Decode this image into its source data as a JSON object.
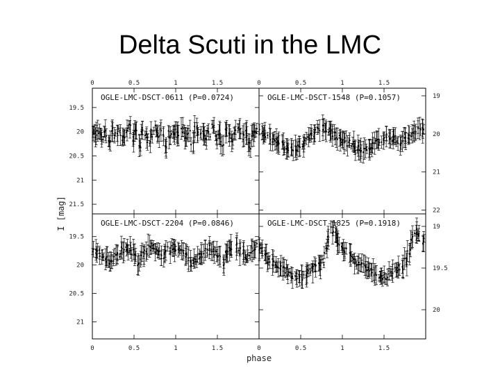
{
  "title": "Delta Scuti in the LMC",
  "chart_data": {
    "type": "scatter",
    "title": "Delta Scuti in the LMC",
    "xlabel": "phase",
    "ylabel": "I [mag]",
    "x_ticks": [
      "0",
      "0.5",
      "1",
      "1.5"
    ],
    "xlim": [
      0,
      2
    ],
    "grid": false,
    "panels": [
      {
        "id": "tl",
        "label": "OGLE-LMC-DSCT-0611 (P=0.0724)",
        "y_ticks": [
          "19.5",
          "20",
          "20.5",
          "21",
          "21.5"
        ],
        "y_tick_values": [
          19.5,
          20,
          20.5,
          21,
          21.5
        ],
        "y_axis_side": "left",
        "ylim": [
          19.1,
          21.7
        ],
        "points": [
          [
            0.0,
            20.0
          ],
          [
            0.04,
            20.05
          ],
          [
            0.08,
            19.98
          ],
          [
            0.12,
            20.1
          ],
          [
            0.16,
            20.02
          ],
          [
            0.2,
            20.2
          ],
          [
            0.24,
            19.95
          ],
          [
            0.28,
            20.08
          ],
          [
            0.32,
            20.01
          ],
          [
            0.36,
            20.15
          ],
          [
            0.4,
            20.05
          ],
          [
            0.44,
            19.92
          ],
          [
            0.48,
            20.12
          ],
          [
            0.52,
            20.0
          ],
          [
            0.56,
            20.25
          ],
          [
            0.6,
            19.97
          ],
          [
            0.64,
            20.07
          ],
          [
            0.68,
            20.18
          ],
          [
            0.72,
            20.03
          ],
          [
            0.76,
            19.94
          ],
          [
            0.8,
            20.1
          ],
          [
            0.84,
            20.02
          ],
          [
            0.88,
            20.3
          ],
          [
            0.92,
            20.05
          ],
          [
            0.96,
            20.0
          ],
          [
            1.0,
            20.0
          ],
          [
            1.04,
            20.05
          ],
          [
            1.08,
            19.98
          ],
          [
            1.12,
            20.1
          ],
          [
            1.16,
            20.02
          ],
          [
            1.2,
            20.2
          ],
          [
            1.24,
            19.95
          ],
          [
            1.28,
            20.08
          ],
          [
            1.32,
            20.01
          ],
          [
            1.36,
            20.15
          ],
          [
            1.4,
            20.05
          ],
          [
            1.44,
            19.92
          ],
          [
            1.48,
            20.12
          ],
          [
            1.52,
            20.0
          ],
          [
            1.56,
            20.25
          ],
          [
            1.6,
            19.97
          ],
          [
            1.64,
            20.07
          ],
          [
            1.68,
            20.18
          ],
          [
            1.72,
            20.03
          ],
          [
            1.76,
            19.94
          ],
          [
            1.8,
            20.1
          ],
          [
            1.84,
            20.02
          ],
          [
            1.88,
            20.3
          ],
          [
            1.92,
            20.05
          ],
          [
            1.96,
            20.0
          ]
        ]
      },
      {
        "id": "tr",
        "label": "OGLE-LMC-DSCT-1548 (P=0.1057)",
        "y_ticks": [
          "19",
          "20",
          "21",
          "22"
        ],
        "y_tick_values": [
          19,
          20,
          21,
          22
        ],
        "y_axis_side": "right",
        "ylim": [
          18.8,
          22.1
        ],
        "points": [
          [
            0.0,
            19.9
          ],
          [
            0.04,
            19.95
          ],
          [
            0.08,
            20.05
          ],
          [
            0.12,
            20.1
          ],
          [
            0.16,
            20.15
          ],
          [
            0.2,
            20.2
          ],
          [
            0.24,
            20.25
          ],
          [
            0.28,
            20.3
          ],
          [
            0.32,
            20.35
          ],
          [
            0.36,
            20.4
          ],
          [
            0.4,
            20.4
          ],
          [
            0.44,
            20.35
          ],
          [
            0.48,
            20.3
          ],
          [
            0.52,
            20.25
          ],
          [
            0.56,
            20.2
          ],
          [
            0.6,
            20.1
          ],
          [
            0.64,
            20.0
          ],
          [
            0.68,
            19.95
          ],
          [
            0.72,
            19.9
          ],
          [
            0.76,
            19.85
          ],
          [
            0.8,
            19.88
          ],
          [
            0.84,
            19.95
          ],
          [
            0.88,
            20.0
          ],
          [
            0.92,
            20.05
          ],
          [
            0.96,
            20.1
          ],
          [
            1.0,
            20.15
          ],
          [
            1.04,
            20.2
          ],
          [
            1.08,
            20.25
          ],
          [
            1.12,
            20.3
          ],
          [
            1.16,
            20.35
          ],
          [
            1.2,
            20.4
          ],
          [
            1.24,
            20.45
          ],
          [
            1.28,
            20.4
          ],
          [
            1.32,
            20.35
          ],
          [
            1.36,
            20.3
          ],
          [
            1.4,
            20.25
          ],
          [
            1.44,
            20.2
          ],
          [
            1.48,
            20.15
          ],
          [
            1.52,
            20.1
          ],
          [
            1.56,
            20.05
          ],
          [
            1.6,
            20.1
          ],
          [
            1.64,
            20.15
          ],
          [
            1.68,
            20.2
          ],
          [
            1.72,
            20.15
          ],
          [
            1.76,
            20.1
          ],
          [
            1.8,
            20.05
          ],
          [
            1.84,
            20.0
          ],
          [
            1.88,
            19.95
          ],
          [
            1.92,
            19.9
          ],
          [
            1.96,
            19.9
          ]
        ]
      },
      {
        "id": "bl",
        "label": "OGLE-LMC-DSCT-2204 (P=0.0846)",
        "y_ticks": [
          "19.5",
          "20",
          "20.5",
          "21"
        ],
        "y_tick_values": [
          19.5,
          20,
          20.5,
          21
        ],
        "y_axis_side": "left",
        "ylim": [
          19.1,
          21.3
        ],
        "points": [
          [
            0.0,
            19.7
          ],
          [
            0.04,
            19.75
          ],
          [
            0.08,
            19.8
          ],
          [
            0.12,
            19.85
          ],
          [
            0.16,
            19.9
          ],
          [
            0.2,
            19.95
          ],
          [
            0.24,
            19.9
          ],
          [
            0.28,
            19.85
          ],
          [
            0.32,
            19.8
          ],
          [
            0.36,
            19.75
          ],
          [
            0.4,
            19.7
          ],
          [
            0.44,
            19.72
          ],
          [
            0.48,
            19.78
          ],
          [
            0.52,
            19.85
          ],
          [
            0.56,
            19.95
          ],
          [
            0.6,
            19.8
          ],
          [
            0.64,
            19.75
          ],
          [
            0.68,
            19.7
          ],
          [
            0.72,
            19.68
          ],
          [
            0.76,
            19.75
          ],
          [
            0.8,
            19.8
          ],
          [
            0.84,
            19.85
          ],
          [
            0.88,
            19.8
          ],
          [
            0.92,
            19.72
          ],
          [
            0.96,
            19.68
          ],
          [
            1.0,
            19.7
          ],
          [
            1.04,
            19.75
          ],
          [
            1.08,
            19.8
          ],
          [
            1.12,
            19.85
          ],
          [
            1.16,
            19.9
          ],
          [
            1.2,
            19.95
          ],
          [
            1.24,
            19.9
          ],
          [
            1.28,
            19.85
          ],
          [
            1.32,
            19.8
          ],
          [
            1.36,
            19.75
          ],
          [
            1.4,
            19.7
          ],
          [
            1.44,
            19.72
          ],
          [
            1.48,
            19.78
          ],
          [
            1.52,
            19.85
          ],
          [
            1.56,
            19.95
          ],
          [
            1.6,
            19.8
          ],
          [
            1.64,
            19.75
          ],
          [
            1.68,
            19.7
          ],
          [
            1.72,
            19.68
          ],
          [
            1.76,
            19.75
          ],
          [
            1.8,
            19.8
          ],
          [
            1.84,
            19.85
          ],
          [
            1.88,
            19.8
          ],
          [
            1.92,
            19.72
          ],
          [
            1.96,
            19.68
          ]
        ]
      },
      {
        "id": "br",
        "label": "OGLE-LMC-DSCT-1825 (P=0.1918)",
        "y_ticks": [
          "19",
          "19.5",
          "20"
        ],
        "y_tick_values": [
          19,
          19.5,
          20
        ],
        "y_axis_side": "right",
        "ylim": [
          18.85,
          20.35
        ],
        "points": [
          [
            0.0,
            19.25
          ],
          [
            0.04,
            19.3
          ],
          [
            0.08,
            19.35
          ],
          [
            0.12,
            19.4
          ],
          [
            0.16,
            19.42
          ],
          [
            0.2,
            19.45
          ],
          [
            0.24,
            19.48
          ],
          [
            0.28,
            19.5
          ],
          [
            0.32,
            19.52
          ],
          [
            0.36,
            19.55
          ],
          [
            0.4,
            19.58
          ],
          [
            0.44,
            19.6
          ],
          [
            0.48,
            19.62
          ],
          [
            0.52,
            19.6
          ],
          [
            0.56,
            19.58
          ],
          [
            0.6,
            19.55
          ],
          [
            0.64,
            19.52
          ],
          [
            0.68,
            19.5
          ],
          [
            0.72,
            19.48
          ],
          [
            0.76,
            19.42
          ],
          [
            0.8,
            19.3
          ],
          [
            0.84,
            19.15
          ],
          [
            0.88,
            19.05
          ],
          [
            0.92,
            19.1
          ],
          [
            0.96,
            19.18
          ],
          [
            1.0,
            19.25
          ],
          [
            1.04,
            19.3
          ],
          [
            1.08,
            19.35
          ],
          [
            1.12,
            19.4
          ],
          [
            1.16,
            19.42
          ],
          [
            1.2,
            19.45
          ],
          [
            1.24,
            19.48
          ],
          [
            1.28,
            19.5
          ],
          [
            1.32,
            19.52
          ],
          [
            1.36,
            19.55
          ],
          [
            1.4,
            19.58
          ],
          [
            1.44,
            19.6
          ],
          [
            1.48,
            19.62
          ],
          [
            1.52,
            19.6
          ],
          [
            1.56,
            19.58
          ],
          [
            1.6,
            19.55
          ],
          [
            1.64,
            19.52
          ],
          [
            1.68,
            19.5
          ],
          [
            1.72,
            19.48
          ],
          [
            1.76,
            19.42
          ],
          [
            1.8,
            19.3
          ],
          [
            1.84,
            19.15
          ],
          [
            1.88,
            19.05
          ],
          [
            1.92,
            19.1
          ],
          [
            1.96,
            19.18
          ]
        ]
      }
    ]
  }
}
